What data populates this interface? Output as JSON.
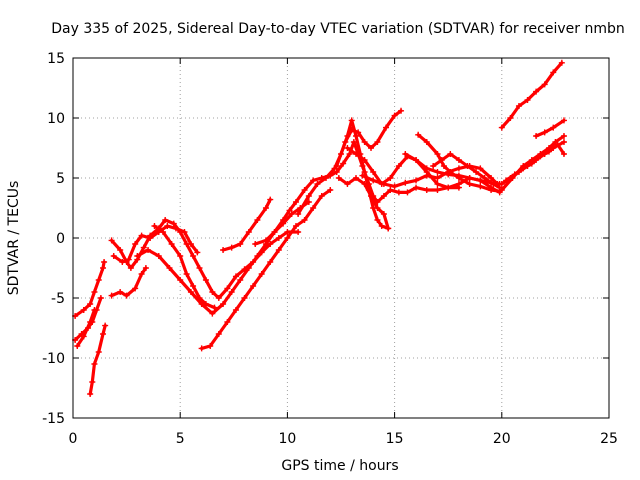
{
  "chart_data": {
    "type": "scatter",
    "title": "Day 335 of 2025, Sidereal Day-to-day VTEC variation (SDTVAR) for receiver nmbn",
    "xlabel": "GPS time / hours",
    "ylabel": "SDTVAR / TECUs",
    "xlim": [
      0,
      25
    ],
    "ylim": [
      -15,
      15
    ],
    "xticks": [
      0,
      5,
      10,
      15,
      20,
      25
    ],
    "yticks": [
      -15,
      -10,
      -5,
      0,
      5,
      10,
      15
    ],
    "grid": true,
    "legend": "none",
    "marker": "plus",
    "color": "#ff0000",
    "series": [
      {
        "points": [
          [
            0.1,
            -6.5
          ],
          [
            0.5,
            -6.0
          ],
          [
            0.8,
            -5.5
          ],
          [
            1.0,
            -4.5
          ],
          [
            1.2,
            -3.5
          ],
          [
            1.4,
            -2.5
          ],
          [
            1.45,
            -2.0
          ]
        ]
      },
      {
        "points": [
          [
            0.1,
            -8.5
          ],
          [
            0.4,
            -8.0
          ],
          [
            0.7,
            -7.5
          ],
          [
            0.9,
            -7.0
          ],
          [
            1.1,
            -6.0
          ],
          [
            1.3,
            -5.0
          ]
        ]
      },
      {
        "points": [
          [
            0.2,
            -9.0
          ],
          [
            0.5,
            -8.2
          ],
          [
            0.8,
            -7.0
          ],
          [
            1.0,
            -6.0
          ]
        ]
      },
      {
        "points": [
          [
            0.8,
            -13.0
          ],
          [
            0.9,
            -12.0
          ],
          [
            1.0,
            -10.5
          ],
          [
            1.2,
            -9.5
          ],
          [
            1.4,
            -8.0
          ],
          [
            1.5,
            -7.3
          ]
        ]
      },
      {
        "points": [
          [
            1.8,
            -4.8
          ],
          [
            2.2,
            -4.5
          ],
          [
            2.5,
            -4.8
          ],
          [
            2.9,
            -4.2
          ],
          [
            3.2,
            -3.0
          ],
          [
            3.4,
            -2.5
          ]
        ]
      },
      {
        "points": [
          [
            1.9,
            -1.5
          ],
          [
            2.3,
            -2.0
          ],
          [
            2.6,
            -1.8
          ],
          [
            2.9,
            -0.5
          ],
          [
            3.2,
            0.2
          ],
          [
            3.6,
            0.0
          ],
          [
            4.0,
            0.5
          ],
          [
            4.4,
            1.0
          ],
          [
            4.8,
            0.8
          ],
          [
            5.2,
            0.5
          ],
          [
            5.5,
            -0.5
          ],
          [
            5.8,
            -1.2
          ]
        ]
      },
      {
        "points": [
          [
            1.8,
            -0.2
          ],
          [
            2.2,
            -1.0
          ],
          [
            2.5,
            -2.0
          ],
          [
            2.7,
            -2.5
          ],
          [
            3.0,
            -1.8
          ],
          [
            3.3,
            -0.8
          ],
          [
            3.6,
            0.2
          ],
          [
            4.0,
            0.8
          ],
          [
            4.3,
            1.5
          ],
          [
            4.7,
            1.2
          ],
          [
            5.0,
            0.5
          ],
          [
            5.3,
            -0.5
          ],
          [
            5.6,
            -1.5
          ],
          [
            5.9,
            -2.5
          ],
          [
            6.2,
            -3.5
          ],
          [
            6.5,
            -4.5
          ],
          [
            6.8,
            -5.0
          ],
          [
            7.2,
            -4.2
          ],
          [
            7.6,
            -3.2
          ],
          [
            8.0,
            -2.6
          ],
          [
            8.4,
            -2.0
          ],
          [
            8.8,
            -1.2
          ],
          [
            9.2,
            -0.5
          ],
          [
            9.6,
            0.0
          ],
          [
            10.0,
            0.5
          ],
          [
            10.5,
            0.5
          ]
        ]
      },
      {
        "points": [
          [
            3.0,
            -1.5
          ],
          [
            3.5,
            -1.0
          ],
          [
            4.0,
            -1.5
          ],
          [
            4.5,
            -2.5
          ],
          [
            5.0,
            -3.5
          ],
          [
            5.5,
            -4.5
          ],
          [
            6.0,
            -5.5
          ],
          [
            6.5,
            -6.3
          ],
          [
            7.0,
            -5.5
          ],
          [
            7.4,
            -4.5
          ],
          [
            7.8,
            -3.5
          ],
          [
            8.2,
            -2.5
          ],
          [
            8.6,
            -1.5
          ],
          [
            9.0,
            -0.5
          ],
          [
            9.4,
            0.5
          ],
          [
            9.8,
            1.2
          ],
          [
            10.2,
            2.0
          ],
          [
            10.6,
            2.5
          ],
          [
            11.0,
            3.0
          ]
        ]
      },
      {
        "points": [
          [
            3.8,
            1.0
          ],
          [
            4.2,
            0.5
          ],
          [
            4.6,
            -0.5
          ],
          [
            5.0,
            -1.5
          ],
          [
            5.3,
            -3.0
          ],
          [
            5.6,
            -4.0
          ],
          [
            5.9,
            -5.0
          ],
          [
            6.2,
            -5.5
          ],
          [
            6.6,
            -5.8
          ]
        ]
      },
      {
        "points": [
          [
            6.0,
            -9.2
          ],
          [
            6.4,
            -9.0
          ],
          [
            6.8,
            -8.0
          ],
          [
            7.2,
            -7.0
          ],
          [
            7.6,
            -6.0
          ],
          [
            8.0,
            -5.0
          ],
          [
            8.4,
            -4.0
          ],
          [
            8.8,
            -3.0
          ],
          [
            9.2,
            -2.0
          ],
          [
            9.6,
            -1.0
          ],
          [
            10.0,
            0.0
          ],
          [
            10.4,
            1.0
          ],
          [
            10.8,
            1.5
          ],
          [
            11.2,
            2.5
          ],
          [
            11.6,
            3.5
          ],
          [
            12.0,
            4.0
          ]
        ]
      },
      {
        "points": [
          [
            7.0,
            -1.0
          ],
          [
            7.4,
            -0.8
          ],
          [
            7.8,
            -0.5
          ],
          [
            8.2,
            0.5
          ],
          [
            8.6,
            1.5
          ],
          [
            9.0,
            2.5
          ],
          [
            9.2,
            3.2
          ]
        ]
      },
      {
        "points": [
          [
            8.5,
            -0.5
          ],
          [
            9.0,
            -0.2
          ],
          [
            9.4,
            0.5
          ],
          [
            9.8,
            1.5
          ],
          [
            10.1,
            2.3
          ],
          [
            10.4,
            3.0
          ],
          [
            10.8,
            4.0
          ],
          [
            11.2,
            4.8
          ],
          [
            11.6,
            5.0
          ],
          [
            12.0,
            5.2
          ],
          [
            12.3,
            5.5
          ],
          [
            12.6,
            6.2
          ],
          [
            12.9,
            7.0
          ],
          [
            13.1,
            8.0
          ],
          [
            13.3,
            7.0
          ],
          [
            13.5,
            6.0
          ],
          [
            13.8,
            4.5
          ],
          [
            14.0,
            3.5
          ],
          [
            14.2,
            3.0
          ],
          [
            14.5,
            3.5
          ],
          [
            14.8,
            4.0
          ],
          [
            15.2,
            3.8
          ],
          [
            15.6,
            3.8
          ],
          [
            16.0,
            4.2
          ],
          [
            16.5,
            4.0
          ],
          [
            17.0,
            4.0
          ],
          [
            17.5,
            4.2
          ],
          [
            18.0,
            4.2
          ]
        ]
      },
      {
        "points": [
          [
            10.5,
            2.0
          ],
          [
            11.0,
            3.5
          ],
          [
            11.4,
            4.5
          ],
          [
            11.8,
            5.0
          ],
          [
            12.2,
            5.8
          ],
          [
            12.5,
            7.0
          ],
          [
            12.8,
            8.5
          ],
          [
            13.0,
            9.8
          ],
          [
            13.2,
            8.5
          ],
          [
            13.4,
            7.0
          ],
          [
            13.6,
            5.5
          ],
          [
            13.8,
            4.0
          ],
          [
            14.0,
            2.5
          ],
          [
            14.2,
            1.5
          ],
          [
            14.4,
            1.0
          ],
          [
            14.7,
            0.8
          ]
        ]
      },
      {
        "points": [
          [
            12.3,
            6.0
          ],
          [
            12.7,
            8.0
          ],
          [
            13.0,
            9.0
          ],
          [
            13.3,
            8.8
          ],
          [
            13.6,
            8.0
          ],
          [
            13.9,
            7.5
          ],
          [
            14.2,
            8.0
          ],
          [
            14.6,
            9.2
          ],
          [
            15.0,
            10.2
          ],
          [
            15.3,
            10.6
          ]
        ]
      },
      {
        "points": [
          [
            12.4,
            5.0
          ],
          [
            12.8,
            4.5
          ],
          [
            13.2,
            5.0
          ],
          [
            13.6,
            4.5
          ],
          [
            13.9,
            3.5
          ],
          [
            14.2,
            2.5
          ],
          [
            14.5,
            2.0
          ],
          [
            14.7,
            0.8
          ]
        ]
      },
      {
        "points": [
          [
            12.8,
            7.5
          ],
          [
            13.2,
            7.0
          ],
          [
            13.6,
            6.5
          ],
          [
            14.0,
            5.5
          ],
          [
            14.4,
            4.5
          ],
          [
            14.8,
            5.0
          ],
          [
            15.2,
            6.0
          ],
          [
            15.6,
            6.8
          ],
          [
            16.0,
            6.5
          ],
          [
            16.5,
            5.8
          ],
          [
            17.0,
            5.5
          ],
          [
            17.5,
            5.3
          ],
          [
            18.0,
            5.2
          ],
          [
            18.5,
            5.0
          ],
          [
            19.0,
            4.8
          ],
          [
            19.5,
            4.6
          ],
          [
            19.9,
            4.5
          ]
        ]
      },
      {
        "points": [
          [
            13.5,
            5.2
          ],
          [
            14.0,
            4.8
          ],
          [
            14.5,
            4.5
          ],
          [
            15.0,
            4.3
          ],
          [
            15.5,
            4.6
          ],
          [
            16.0,
            4.8
          ],
          [
            16.5,
            5.2
          ],
          [
            17.0,
            5.0
          ],
          [
            17.5,
            5.5
          ],
          [
            18.0,
            5.8
          ],
          [
            18.5,
            6.0
          ],
          [
            19.0,
            5.8
          ],
          [
            19.5,
            5.0
          ],
          [
            19.8,
            4.5
          ]
        ]
      },
      {
        "points": [
          [
            15.5,
            7.0
          ],
          [
            16.0,
            6.5
          ],
          [
            16.5,
            5.5
          ],
          [
            17.0,
            4.5
          ],
          [
            17.5,
            4.2
          ],
          [
            18.0,
            4.5
          ],
          [
            18.5,
            5.0
          ],
          [
            19.0,
            4.8
          ],
          [
            19.5,
            4.2
          ],
          [
            19.9,
            3.8
          ]
        ]
      },
      {
        "points": [
          [
            16.1,
            8.6
          ],
          [
            16.5,
            8.0
          ],
          [
            17.0,
            7.0
          ],
          [
            17.3,
            6.0
          ],
          [
            17.6,
            5.5
          ],
          [
            18.0,
            5.0
          ],
          [
            18.5,
            4.5
          ],
          [
            19.0,
            4.3
          ],
          [
            19.5,
            4.0
          ],
          [
            19.9,
            3.9
          ]
        ]
      },
      {
        "points": [
          [
            16.8,
            6.0
          ],
          [
            17.2,
            6.5
          ],
          [
            17.6,
            7.0
          ],
          [
            18.0,
            6.5
          ],
          [
            18.4,
            6.0
          ],
          [
            18.8,
            5.5
          ],
          [
            19.2,
            5.0
          ],
          [
            19.6,
            4.5
          ],
          [
            19.9,
            4.2
          ]
        ]
      },
      {
        "points": [
          [
            20.0,
            9.2
          ],
          [
            20.4,
            10.0
          ],
          [
            20.8,
            11.0
          ],
          [
            21.2,
            11.5
          ],
          [
            21.6,
            12.2
          ],
          [
            22.0,
            12.8
          ],
          [
            22.4,
            13.8
          ],
          [
            22.8,
            14.6
          ]
        ]
      },
      {
        "points": [
          [
            20.0,
            4.5
          ],
          [
            20.4,
            5.0
          ],
          [
            20.8,
            5.5
          ],
          [
            21.2,
            6.0
          ],
          [
            21.6,
            6.5
          ],
          [
            22.0,
            7.0
          ],
          [
            22.4,
            7.5
          ],
          [
            22.9,
            8.0
          ]
        ]
      },
      {
        "points": [
          [
            20.0,
            4.0
          ],
          [
            20.5,
            5.0
          ],
          [
            21.0,
            6.0
          ],
          [
            21.4,
            6.5
          ],
          [
            21.8,
            7.0
          ],
          [
            22.2,
            7.5
          ],
          [
            22.5,
            8.0
          ],
          [
            22.9,
            8.5
          ]
        ]
      },
      {
        "points": [
          [
            20.2,
            4.8
          ],
          [
            20.6,
            5.3
          ],
          [
            21.0,
            5.8
          ],
          [
            21.4,
            6.2
          ],
          [
            21.8,
            6.8
          ],
          [
            22.2,
            7.2
          ],
          [
            22.6,
            7.8
          ],
          [
            22.9,
            7.0
          ]
        ]
      },
      {
        "points": [
          [
            21.6,
            8.5
          ],
          [
            22.0,
            8.8
          ],
          [
            22.4,
            9.2
          ],
          [
            22.9,
            9.8
          ]
        ]
      }
    ]
  }
}
